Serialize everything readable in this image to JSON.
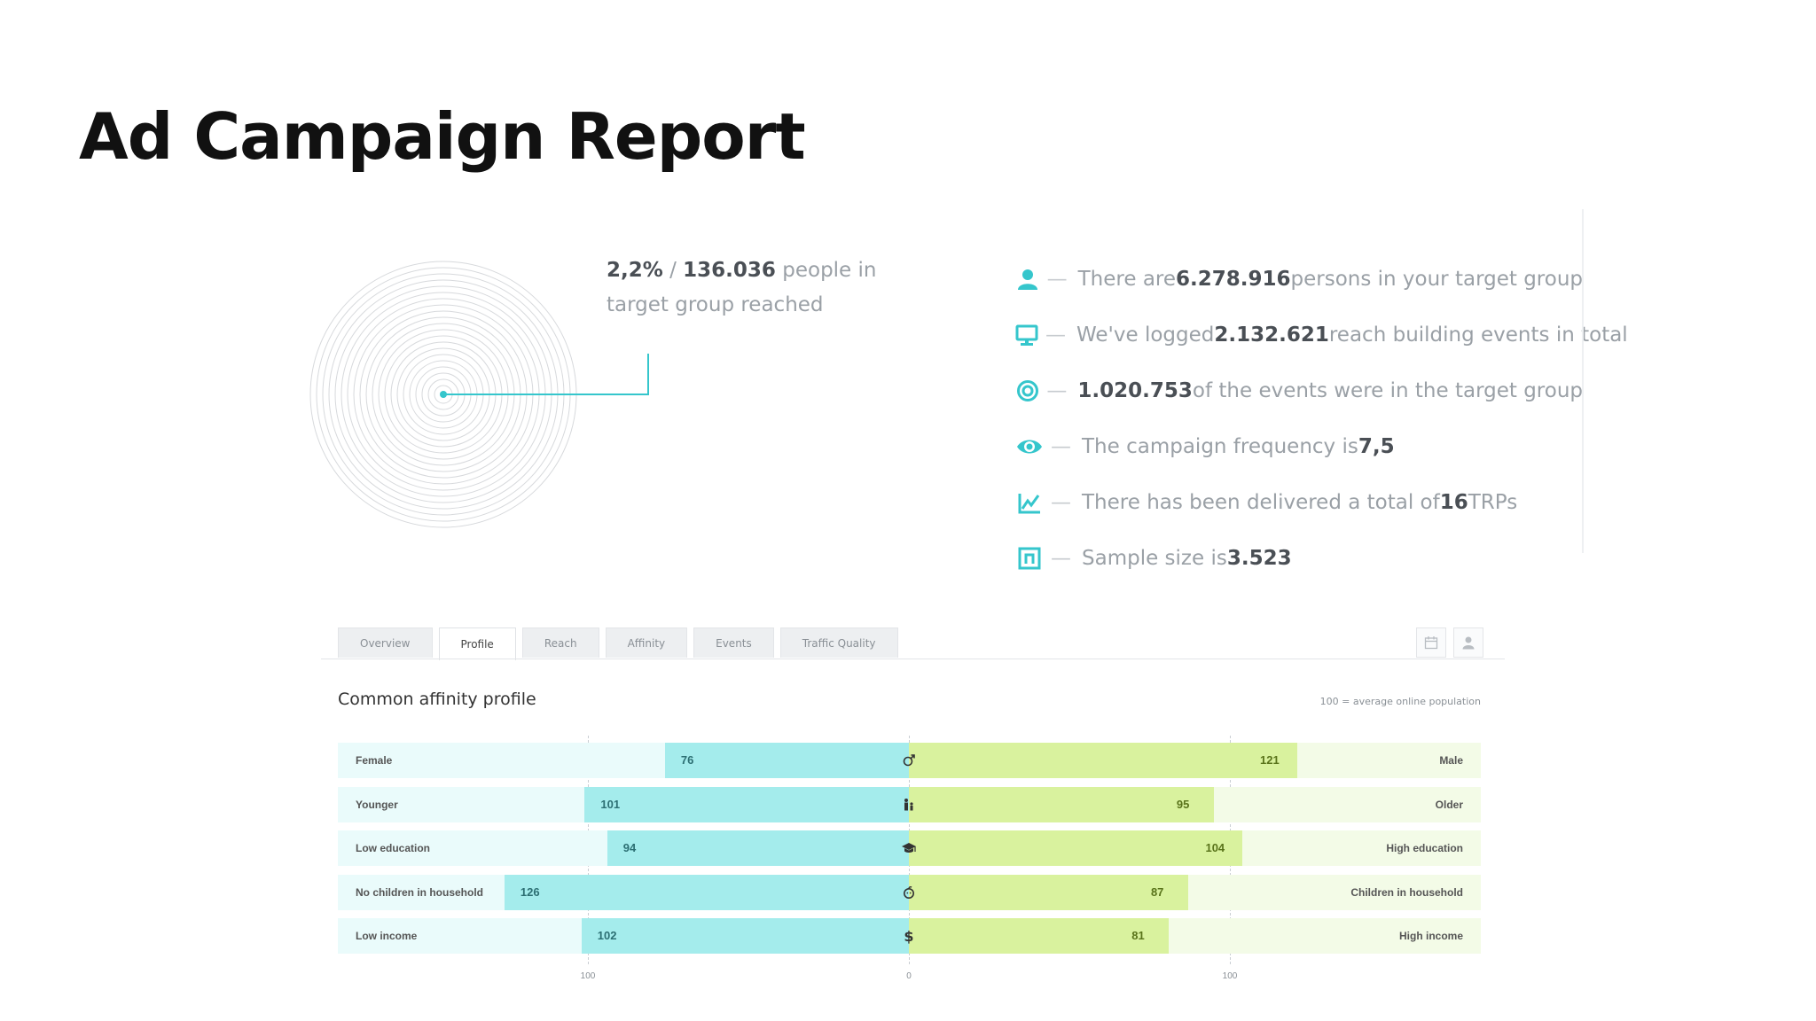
{
  "title": "Ad Campaign Report",
  "reach": {
    "percent": "2,2%",
    "sep": " / ",
    "people": "136.036",
    "text1": " people in",
    "text2": "target group reached"
  },
  "colors": {
    "accent": "#35c6cc",
    "left_bar": "#a4ecec",
    "right_bar": "#d9f29e"
  },
  "stats": [
    {
      "icon": "person-icon",
      "pre": "There are ",
      "bold": "6.278.916",
      "post": " persons in your target group"
    },
    {
      "icon": "monitor-icon",
      "pre": "We've logged ",
      "bold": "2.132.621",
      "post": " reach building events in total"
    },
    {
      "icon": "target-icon",
      "pre": "",
      "bold": "1.020.753",
      "post": " of the events were in the target group"
    },
    {
      "icon": "eye-icon",
      "pre": "The campaign frequency is ",
      "bold": "7,5",
      "post": ""
    },
    {
      "icon": "chart-icon",
      "pre": "There has been delivered a total of ",
      "bold": "16",
      "post": " TRPs"
    },
    {
      "icon": "sample-icon",
      "pre": "Sample size is ",
      "bold": "3.523",
      "post": ""
    }
  ],
  "tabs": [
    "Overview",
    "Profile",
    "Reach",
    "Affinity",
    "Events",
    "Traffic Quality"
  ],
  "active_tab": "Profile",
  "section_title": "Common affinity profile",
  "note": "100 = average online population",
  "chart_data": {
    "type": "bar",
    "rows": [
      {
        "left_label": "Female",
        "left_value": 76,
        "right_label": "Male",
        "right_value": 121,
        "icon": "gender-icon"
      },
      {
        "left_label": "Younger",
        "left_value": 101,
        "right_label": "Older",
        "right_value": 95,
        "icon": "family-icon"
      },
      {
        "left_label": "Low education",
        "left_value": 94,
        "right_label": "High education",
        "right_value": 104,
        "icon": "graduation-cap-icon"
      },
      {
        "left_label": "No children in household",
        "left_value": 126,
        "right_label": "Children in household",
        "right_value": 87,
        "icon": "baby-icon"
      },
      {
        "left_label": "Low income",
        "left_value": 102,
        "right_label": "High income",
        "right_value": 81,
        "icon": "dollar-icon"
      }
    ],
    "axis_ticks": [
      "100",
      "0",
      "100"
    ],
    "xlim": [
      0,
      235
    ]
  }
}
